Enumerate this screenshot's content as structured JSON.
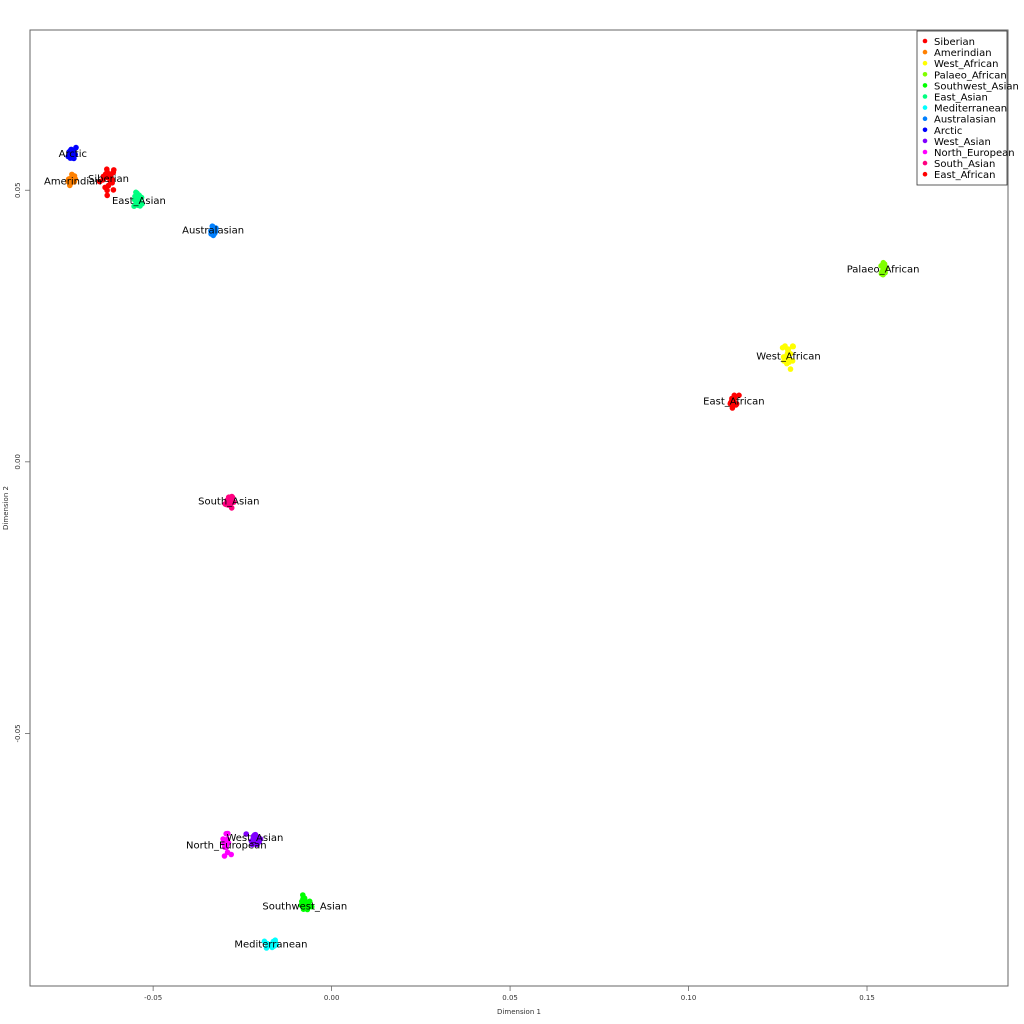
{
  "chart_data": {
    "type": "scatter",
    "title": "",
    "xlabel": "Dimension 1",
    "ylabel": "Dimension 2",
    "xlim": [
      -0.0845,
      0.1895
    ],
    "ylim": [
      -0.0965,
      0.0795
    ],
    "xticks": [
      {
        "value": -0.05,
        "label": "-0.05"
      },
      {
        "value": 0.0,
        "label": "0.00"
      },
      {
        "value": 0.05,
        "label": "0.05"
      },
      {
        "value": 0.1,
        "label": "0.10"
      },
      {
        "value": 0.15,
        "label": "0.15"
      }
    ],
    "yticks": [
      {
        "value": -0.05,
        "label": "-0.05"
      },
      {
        "value": 0.0,
        "label": "0.00"
      },
      {
        "value": 0.05,
        "label": "0.05"
      }
    ],
    "legend_position": "top-right",
    "series": [
      {
        "name": "Siberian",
        "color": "#FF0000",
        "center": [
          -0.0625,
          0.0522
        ],
        "spread": [
          0.0012,
          0.0012
        ],
        "n": 22
      },
      {
        "name": "Amerindian",
        "color": "#FF8000",
        "center": [
          -0.0725,
          0.0517
        ],
        "spread": [
          0.0007,
          0.0006
        ],
        "n": 16
      },
      {
        "name": "West_African",
        "color": "#FFFF00",
        "center": [
          0.128,
          0.0195
        ],
        "spread": [
          0.0008,
          0.0012
        ],
        "n": 20
      },
      {
        "name": "Palaeo_African",
        "color": "#80FF00",
        "center": [
          0.1545,
          0.0355
        ],
        "spread": [
          0.0005,
          0.0007
        ],
        "n": 14
      },
      {
        "name": "Southwest_Asian",
        "color": "#00FF00",
        "center": [
          -0.0075,
          -0.0815
        ],
        "spread": [
          0.0009,
          0.0007
        ],
        "n": 22
      },
      {
        "name": "East_Asian",
        "color": "#00FF80",
        "center": [
          -0.054,
          0.0481
        ],
        "spread": [
          0.0007,
          0.0007
        ],
        "n": 18
      },
      {
        "name": "Mediterranean",
        "color": "#00FFFF",
        "center": [
          -0.017,
          -0.0888
        ],
        "spread": [
          0.0008,
          0.0005
        ],
        "n": 18
      },
      {
        "name": "Australasian",
        "color": "#0080FF",
        "center": [
          -0.0332,
          0.0427
        ],
        "spread": [
          0.0006,
          0.0006
        ],
        "n": 18
      },
      {
        "name": "Arctic",
        "color": "#0000FF",
        "center": [
          -0.0725,
          0.0568
        ],
        "spread": [
          0.0006,
          0.0007
        ],
        "n": 22
      },
      {
        "name": "West_Asian",
        "color": "#8000FF",
        "center": [
          -0.0215,
          -0.0692
        ],
        "spread": [
          0.0007,
          0.0006
        ],
        "n": 18
      },
      {
        "name": "North_European",
        "color": "#FF00FF",
        "center": [
          -0.0295,
          -0.0705
        ],
        "spread": [
          0.0005,
          0.0009
        ],
        "n": 18
      },
      {
        "name": "South_Asian",
        "color": "#FF0080",
        "center": [
          -0.0288,
          -0.0072
        ],
        "spread": [
          0.0005,
          0.0008
        ],
        "n": 18
      },
      {
        "name": "East_African",
        "color": "#FF0000",
        "center": [
          0.1127,
          0.0112
        ],
        "spread": [
          0.0007,
          0.0006
        ],
        "n": 20
      }
    ],
    "annotations": [
      {
        "text": "Siberian",
        "x": -0.0625,
        "y": 0.0522
      },
      {
        "text": "Amerindian",
        "x": -0.0725,
        "y": 0.0517
      },
      {
        "text": "West_African",
        "x": 0.128,
        "y": 0.0195
      },
      {
        "text": "Palaeo_African",
        "x": 0.1545,
        "y": 0.0355
      },
      {
        "text": "Southwest_Asian",
        "x": -0.0075,
        "y": -0.0818
      },
      {
        "text": "East_Asian",
        "x": -0.054,
        "y": 0.0481
      },
      {
        "text": "Mediterranean",
        "x": -0.017,
        "y": -0.0888
      },
      {
        "text": "Australasian",
        "x": -0.0332,
        "y": 0.0427
      },
      {
        "text": "Arctic",
        "x": -0.0725,
        "y": 0.0568
      },
      {
        "text": "West_Asian",
        "x": -0.0215,
        "y": -0.0692
      },
      {
        "text": "North_European",
        "x": -0.0295,
        "y": -0.0705
      },
      {
        "text": "South_Asian",
        "x": -0.0288,
        "y": -0.0072
      },
      {
        "text": "East_African",
        "x": 0.1127,
        "y": 0.0112
      }
    ]
  }
}
